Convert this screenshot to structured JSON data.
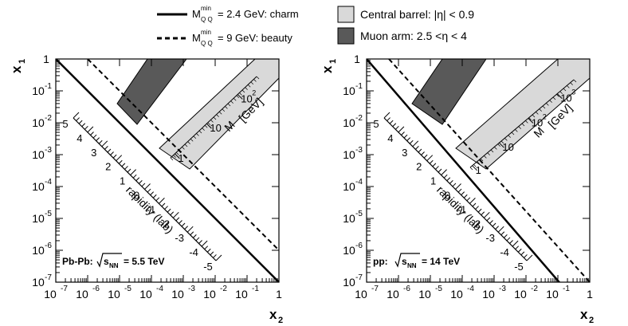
{
  "legend": {
    "charm": {
      "mass_symbol": "M",
      "sup": "min",
      "sub": "Q Q",
      "value_text": "= 2.4 GeV: charm"
    },
    "beauty": {
      "mass_symbol": "M",
      "sup": "min",
      "sub": "Q Q",
      "value_text": "= 9 GeV: beauty"
    },
    "central": {
      "text": "Central barrel: |η| < 0.9",
      "color": "#d9d9d9"
    },
    "muon": {
      "text": "Muon arm: 2.5 <η < 4",
      "color": "#595959"
    }
  },
  "chart_data": [
    {
      "type": "line",
      "system_label": "Pb-Pb:",
      "energy_label": "= 5.5 TeV",
      "energy_sub": "NN",
      "xlabel": "x",
      "xlabel_sub": "2",
      "ylabel": "x",
      "ylabel_sub": "1",
      "x_scale": "log",
      "y_scale": "log",
      "xlim": [
        1e-07,
        1
      ],
      "ylim": [
        1e-07,
        1
      ],
      "x_ticks": [
        "10",
        "10",
        "10",
        "10",
        "10",
        "10",
        "10",
        "1"
      ],
      "x_tick_exps": [
        "-7",
        "-6",
        "-5",
        "-4",
        "-3",
        "-2",
        "-1",
        ""
      ],
      "y_ticks": [
        "10",
        "10",
        "10",
        "10",
        "10",
        "10",
        "10",
        "1"
      ],
      "y_tick_exps": [
        "-7",
        "-6",
        "-5",
        "-4",
        "-3",
        "-2",
        "-1",
        ""
      ],
      "series": [
        {
          "name": "charm",
          "style": "solid",
          "x": [
            1e-07,
            1
          ],
          "y": [
            1,
            1e-07
          ]
        },
        {
          "name": "beauty",
          "style": "dashed",
          "x": [
            1e-06,
            1
          ],
          "y": [
            1,
            1e-06
          ]
        }
      ],
      "rapidity_axis": {
        "label": "rapidity (lab)",
        "ticks": [
          "5",
          "4",
          "3",
          "2",
          "1",
          "0",
          "-1",
          "-2",
          "-3",
          "-4",
          "-5"
        ]
      },
      "mass_axis": {
        "label": "M",
        "unit": "[GeV]",
        "ticks": [
          "1",
          "10",
          "10"
        ],
        "tick_exps": [
          "",
          "",
          "2"
        ]
      }
    },
    {
      "type": "line",
      "system_label": "pp:",
      "energy_label": "= 14 TeV",
      "energy_sub": "NN",
      "xlabel": "x",
      "xlabel_sub": "2",
      "ylabel": "x",
      "ylabel_sub": "1",
      "x_scale": "log",
      "y_scale": "log",
      "xlim": [
        1e-07,
        1
      ],
      "ylim": [
        1e-07,
        1
      ],
      "x_ticks": [
        "10",
        "10",
        "10",
        "10",
        "10",
        "10",
        "10",
        "1"
      ],
      "x_tick_exps": [
        "-7",
        "-6",
        "-5",
        "-4",
        "-3",
        "-2",
        "-1",
        ""
      ],
      "y_ticks": [
        "10",
        "10",
        "10",
        "10",
        "10",
        "10",
        "10",
        "1"
      ],
      "y_tick_exps": [
        "-7",
        "-6",
        "-5",
        "-4",
        "-3",
        "-2",
        "-1",
        ""
      ],
      "series": [
        {
          "name": "charm",
          "style": "solid",
          "x": [
            1e-07,
            0.2
          ],
          "y": [
            1,
            5e-08
          ]
        },
        {
          "name": "beauty",
          "style": "dashed",
          "x": [
            5e-07,
            1
          ],
          "y": [
            1,
            1e-07
          ]
        }
      ],
      "rapidity_axis": {
        "label": "rapidity (lab)",
        "ticks": [
          "5",
          "4",
          "3",
          "2",
          "1",
          "0",
          "-1",
          "-2",
          "-3",
          "-4",
          "-5"
        ]
      },
      "mass_axis": {
        "label": "M",
        "unit": "[GeV]",
        "ticks": [
          "1",
          "10",
          "10",
          "10"
        ],
        "tick_exps": [
          "",
          "",
          "2",
          "3"
        ]
      }
    }
  ]
}
